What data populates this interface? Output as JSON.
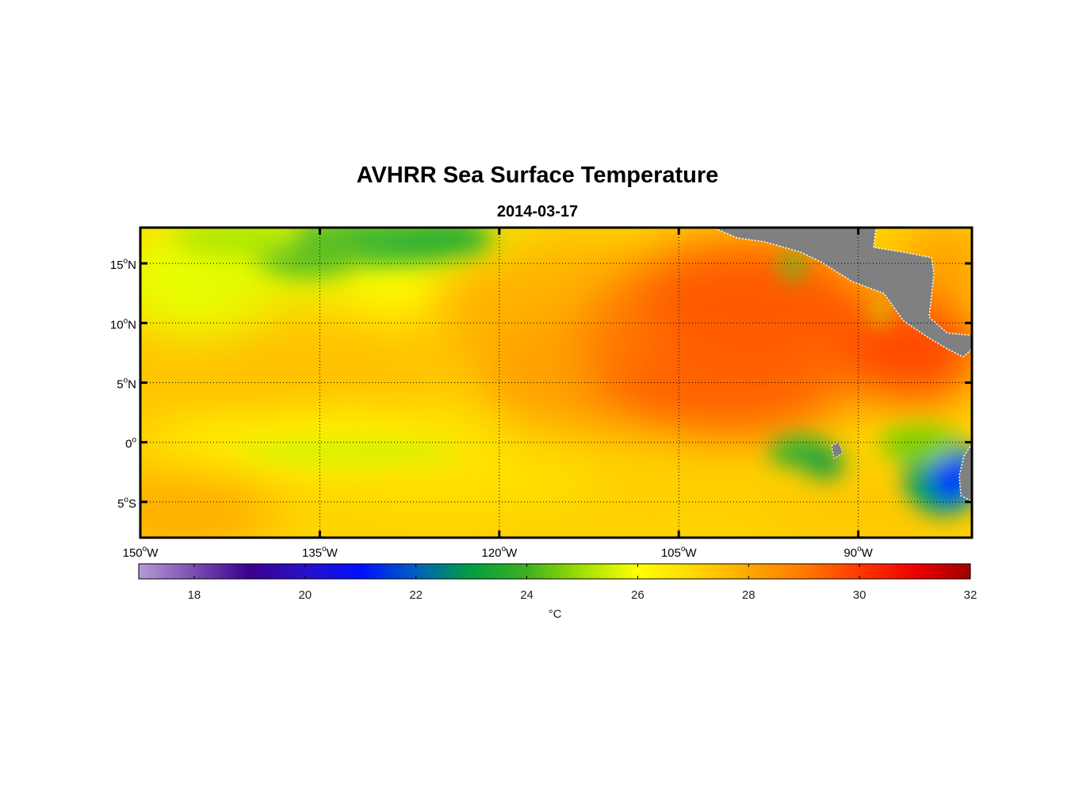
{
  "chart_data": {
    "type": "heatmap",
    "title": "AVHRR Sea Surface Temperature",
    "subtitle": "2014-03-17",
    "x_range": [
      -150,
      -80.5
    ],
    "y_range": [
      -8,
      18
    ],
    "x_ticks": [
      {
        "value": -150,
        "deg": "150",
        "hemi": "W"
      },
      {
        "value": -135,
        "deg": "135",
        "hemi": "W"
      },
      {
        "value": -120,
        "deg": "120",
        "hemi": "W"
      },
      {
        "value": -105,
        "deg": "105",
        "hemi": "W"
      },
      {
        "value": -90,
        "deg": "90",
        "hemi": "W"
      }
    ],
    "y_ticks": [
      {
        "value": 15,
        "deg": "15",
        "hemi": "N"
      },
      {
        "value": 10,
        "deg": "10",
        "hemi": "N"
      },
      {
        "value": 5,
        "deg": "5",
        "hemi": "N"
      },
      {
        "value": 0,
        "deg": "0",
        "hemi": ""
      },
      {
        "value": -5,
        "deg": "5",
        "hemi": "S"
      }
    ],
    "grid": true,
    "colorbar": {
      "range": [
        17,
        32
      ],
      "ticks": [
        "18",
        "20",
        "22",
        "24",
        "26",
        "28",
        "30",
        "32"
      ],
      "tick_values": [
        18,
        20,
        22,
        24,
        26,
        28,
        30,
        32
      ],
      "unit": "°C"
    },
    "land_color": "#808080",
    "frame_color": "#000000"
  }
}
